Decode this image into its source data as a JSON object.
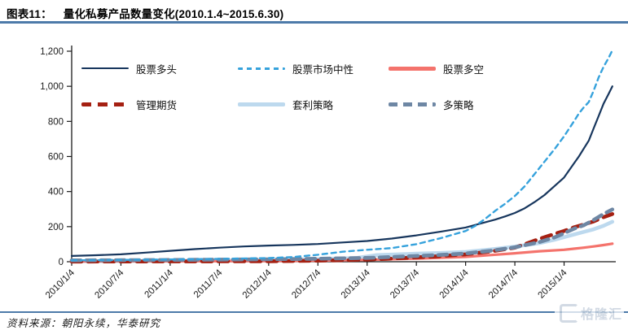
{
  "header": {
    "label": "图表11：",
    "title": "量化私募产品数量变化(2010.1.4~2015.6.30)"
  },
  "footer": {
    "source_label": "资料来源：",
    "source_text": "朝阳永续，华泰研究",
    "watermark": "格隆汇"
  },
  "colors": {
    "rule_blue": "#4d7aa9",
    "axis": "#1a1a1a",
    "tick_text": "#1a1a1a",
    "watermark": "#c3cedb"
  },
  "legend": {
    "rows_top": [
      77,
      121
    ],
    "cols_left": [
      100,
      292,
      477
    ],
    "items": [
      {
        "label": "股票多头",
        "series_index": 0,
        "row": 0,
        "col": 0
      },
      {
        "label": "股票市场中性",
        "series_index": 1,
        "row": 0,
        "col": 1
      },
      {
        "label": "股票多空",
        "series_index": 2,
        "row": 0,
        "col": 2
      },
      {
        "label": "管理期货",
        "series_index": 3,
        "row": 1,
        "col": 0
      },
      {
        "label": "套利策略",
        "series_index": 4,
        "row": 1,
        "col": 1
      },
      {
        "label": "多策略",
        "series_index": 5,
        "row": 1,
        "col": 2
      }
    ]
  },
  "chart_data": {
    "type": "line",
    "title": "量化私募产品数量变化(2010.1.4~2015.6.30)",
    "xlabel": "",
    "ylabel": "",
    "grid": false,
    "legend_position": "top-inside",
    "ylim": [
      0,
      1200
    ],
    "x_range_years": [
      2010.0,
      2015.5
    ],
    "y_ticks": [
      0,
      200,
      400,
      600,
      800,
      1000,
      1200
    ],
    "y_tick_labels": [
      "0",
      "200",
      "400",
      "600",
      "800",
      "1,000",
      "1,200"
    ],
    "x_ticks_years": [
      2010.0,
      2010.5,
      2011.0,
      2011.5,
      2012.0,
      2012.5,
      2013.0,
      2013.5,
      2014.0,
      2014.5,
      2015.0
    ],
    "x_tick_labels": [
      "2010/1/4",
      "2010/7/4",
      "2011/1/4",
      "2011/7/4",
      "2012/1/4",
      "2012/7/4",
      "2013/1/4",
      "2013/7/4",
      "2014/1/4",
      "2014/7/4",
      "2015/1/4"
    ],
    "draw_order": [
      4,
      2,
      3,
      5,
      0,
      1
    ],
    "series": [
      {
        "name": "股票多头",
        "color": "#17365d",
        "style": "solid",
        "width": 2.2,
        "points": [
          [
            2010.0,
            33
          ],
          [
            2010.25,
            37
          ],
          [
            2010.5,
            42
          ],
          [
            2010.75,
            52
          ],
          [
            2011.0,
            62
          ],
          [
            2011.25,
            72
          ],
          [
            2011.5,
            80
          ],
          [
            2011.75,
            87
          ],
          [
            2012.0,
            92
          ],
          [
            2012.25,
            96
          ],
          [
            2012.5,
            101
          ],
          [
            2012.75,
            110
          ],
          [
            2013.0,
            118
          ],
          [
            2013.25,
            132
          ],
          [
            2013.5,
            150
          ],
          [
            2013.75,
            172
          ],
          [
            2014.0,
            195
          ],
          [
            2014.1,
            210
          ],
          [
            2014.2,
            225
          ],
          [
            2014.3,
            240
          ],
          [
            2014.4,
            258
          ],
          [
            2014.5,
            278
          ],
          [
            2014.6,
            305
          ],
          [
            2014.7,
            340
          ],
          [
            2014.8,
            380
          ],
          [
            2014.9,
            430
          ],
          [
            2015.0,
            480
          ],
          [
            2015.1,
            560
          ],
          [
            2015.15,
            600
          ],
          [
            2015.2,
            645
          ],
          [
            2015.25,
            690
          ],
          [
            2015.3,
            760
          ],
          [
            2015.35,
            830
          ],
          [
            2015.4,
            900
          ],
          [
            2015.45,
            955
          ],
          [
            2015.49,
            1000
          ]
        ]
      },
      {
        "name": "股票市场中性",
        "color": "#36a2dc",
        "style": "dashed",
        "width": 2.4,
        "dash": "6 5",
        "points": [
          [
            2010.0,
            8
          ],
          [
            2010.5,
            10
          ],
          [
            2011.0,
            13
          ],
          [
            2011.5,
            16
          ],
          [
            2012.0,
            21
          ],
          [
            2012.25,
            27
          ],
          [
            2012.5,
            40
          ],
          [
            2012.75,
            57
          ],
          [
            2013.0,
            68
          ],
          [
            2013.25,
            78
          ],
          [
            2013.5,
            100
          ],
          [
            2013.75,
            135
          ],
          [
            2014.0,
            175
          ],
          [
            2014.1,
            205
          ],
          [
            2014.2,
            245
          ],
          [
            2014.3,
            290
          ],
          [
            2014.4,
            330
          ],
          [
            2014.5,
            375
          ],
          [
            2014.6,
            430
          ],
          [
            2014.7,
            500
          ],
          [
            2014.8,
            570
          ],
          [
            2014.9,
            640
          ],
          [
            2015.0,
            715
          ],
          [
            2015.1,
            800
          ],
          [
            2015.15,
            845
          ],
          [
            2015.2,
            880
          ],
          [
            2015.25,
            910
          ],
          [
            2015.3,
            975
          ],
          [
            2015.35,
            1050
          ],
          [
            2015.4,
            1110
          ],
          [
            2015.45,
            1160
          ],
          [
            2015.49,
            1205
          ]
        ]
      },
      {
        "name": "股票多空",
        "color": "#f4736c",
        "style": "solid",
        "width": 3.2,
        "points": [
          [
            2010.0,
            2
          ],
          [
            2011.0,
            3
          ],
          [
            2012.0,
            4
          ],
          [
            2012.5,
            6
          ],
          [
            2013.0,
            10
          ],
          [
            2013.5,
            18
          ],
          [
            2014.0,
            28
          ],
          [
            2014.25,
            38
          ],
          [
            2014.5,
            48
          ],
          [
            2014.75,
            60
          ],
          [
            2015.0,
            68
          ],
          [
            2015.1,
            74
          ],
          [
            2015.2,
            80
          ],
          [
            2015.3,
            87
          ],
          [
            2015.4,
            95
          ],
          [
            2015.49,
            103
          ]
        ]
      },
      {
        "name": "管理期货",
        "color": "#a52012",
        "style": "dashed",
        "width": 4.6,
        "dash": "12 8",
        "points": [
          [
            2010.0,
            1
          ],
          [
            2011.0,
            2
          ],
          [
            2012.0,
            3
          ],
          [
            2012.5,
            6
          ],
          [
            2013.0,
            12
          ],
          [
            2013.25,
            18
          ],
          [
            2013.5,
            25
          ],
          [
            2013.75,
            32
          ],
          [
            2014.0,
            42
          ],
          [
            2014.25,
            58
          ],
          [
            2014.5,
            80
          ],
          [
            2014.6,
            100
          ],
          [
            2014.75,
            130
          ],
          [
            2014.9,
            158
          ],
          [
            2015.0,
            175
          ],
          [
            2015.1,
            196
          ],
          [
            2015.2,
            212
          ],
          [
            2015.3,
            230
          ],
          [
            2015.4,
            254
          ],
          [
            2015.49,
            272
          ]
        ]
      },
      {
        "name": "套利策略",
        "color": "#bdd9ee",
        "style": "solid",
        "width": 4.6,
        "points": [
          [
            2010.0,
            3
          ],
          [
            2010.5,
            4
          ],
          [
            2011.0,
            5
          ],
          [
            2011.5,
            7
          ],
          [
            2012.0,
            10
          ],
          [
            2012.5,
            15
          ],
          [
            2012.9,
            22
          ],
          [
            2013.0,
            30
          ],
          [
            2013.1,
            38
          ],
          [
            2013.5,
            46
          ],
          [
            2013.75,
            50
          ],
          [
            2014.0,
            56
          ],
          [
            2014.25,
            70
          ],
          [
            2014.5,
            86
          ],
          [
            2014.75,
            106
          ],
          [
            2014.9,
            125
          ],
          [
            2015.0,
            140
          ],
          [
            2015.1,
            155
          ],
          [
            2015.2,
            170
          ],
          [
            2015.3,
            185
          ],
          [
            2015.4,
            205
          ],
          [
            2015.49,
            228
          ]
        ]
      },
      {
        "name": "多策略",
        "color": "#6e87a4",
        "style": "dashed",
        "width": 4.6,
        "dash": "11 7",
        "points": [
          [
            2010.0,
            8
          ],
          [
            2010.5,
            9
          ],
          [
            2011.0,
            10
          ],
          [
            2011.5,
            12
          ],
          [
            2012.0,
            14
          ],
          [
            2012.5,
            17
          ],
          [
            2013.0,
            22
          ],
          [
            2013.25,
            27
          ],
          [
            2013.5,
            33
          ],
          [
            2013.75,
            39
          ],
          [
            2014.0,
            47
          ],
          [
            2014.25,
            62
          ],
          [
            2014.5,
            82
          ],
          [
            2014.75,
            112
          ],
          [
            2014.9,
            138
          ],
          [
            2015.0,
            162
          ],
          [
            2015.1,
            188
          ],
          [
            2015.2,
            208
          ],
          [
            2015.3,
            238
          ],
          [
            2015.4,
            272
          ],
          [
            2015.49,
            298
          ]
        ]
      }
    ]
  }
}
